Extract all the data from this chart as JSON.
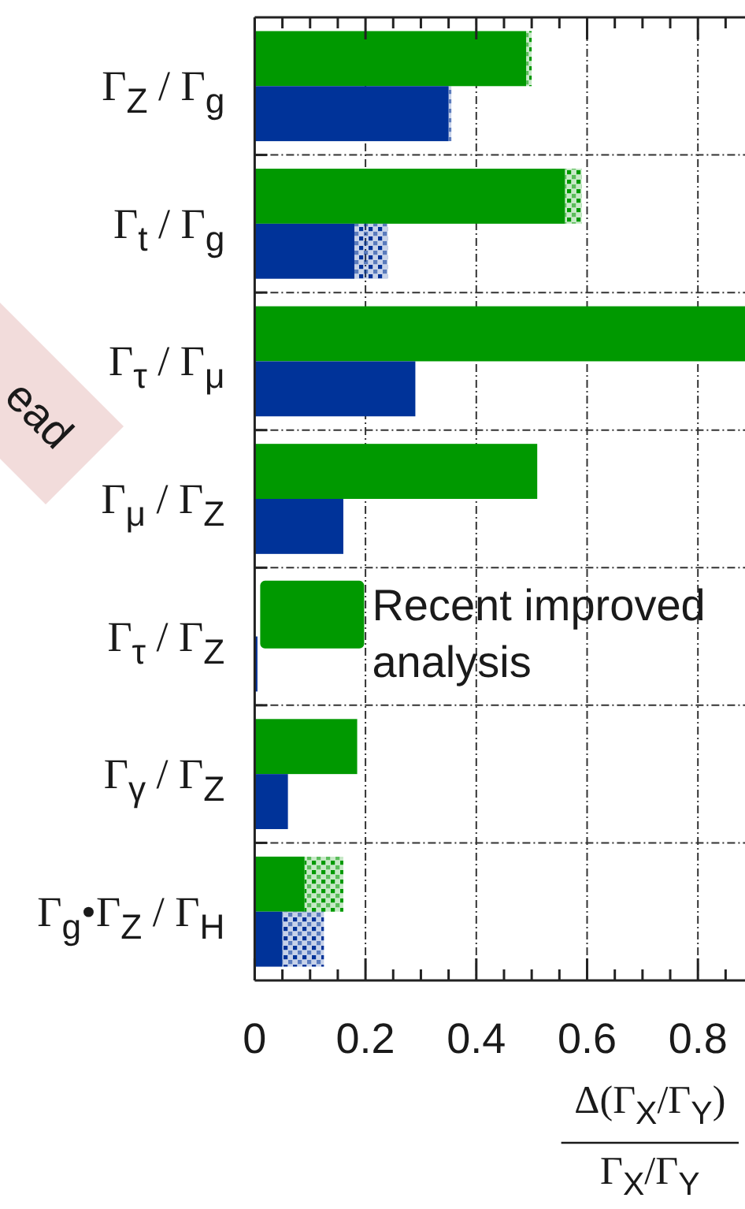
{
  "chart_data": {
    "type": "bar",
    "orientation": "horizontal",
    "categories": [
      "Γ$_{Z}$ / Γ$_{g}$",
      "Γ$_{t}$ / Γ$_{g}$",
      "Γ$_{τ}$ / Γ$_{μ}$",
      "Γ$_{μ}$ / Γ$_{Z}$",
      "Γ$_{τ}$ / Γ$_{Z}$",
      "Γ$_{γ}$ / Γ$_{Z}$",
      "Γ$_{g}$•Γ$_{Z}$ / Γ$_{H}$"
    ],
    "series": [
      {
        "name": "Recent improved analysis",
        "color": "#009900",
        "values": [
          0.49,
          0.56,
          0.885,
          0.51,
          null,
          0.185,
          0.09
        ],
        "errors": [
          [
            0.49,
            0.5
          ],
          [
            0.56,
            0.59
          ],
          null,
          null,
          null,
          null,
          [
            0.09,
            0.16
          ]
        ]
      },
      {
        "color": "#003399",
        "values": [
          0.35,
          0.18,
          0.29,
          0.16,
          0.005,
          0.06,
          0.05
        ],
        "errors": [
          [
            0.35,
            0.355
          ],
          [
            0.18,
            0.24
          ],
          null,
          null,
          null,
          null,
          [
            0.05,
            0.125
          ]
        ]
      }
    ],
    "xlim": [
      0,
      0.885
    ],
    "xticks": [
      0,
      {
        "value": 0.05,
        "label": null
      },
      {
        "value": 0.1,
        "label": null
      },
      {
        "value": 0.15,
        "label": null
      },
      0.2,
      {
        "value": 0.25,
        "label": null
      },
      {
        "value": 0.3,
        "label": null
      },
      {
        "value": 0.35,
        "label": null
      },
      0.4,
      {
        "value": 0.45,
        "label": null
      },
      {
        "value": 0.5,
        "label": null
      },
      {
        "value": 0.55,
        "label": null
      },
      0.6,
      {
        "value": 0.65,
        "label": null
      },
      {
        "value": 0.7,
        "label": null
      },
      {
        "value": 0.75,
        "label": null
      },
      0.8,
      {
        "value": 0.85,
        "label": null
      }
    ],
    "xlabel": "Δ(Γ$_{X}$/Γ$_{Y}$)\nΓ$_{X}$/Γ$_{Y}$",
    "grid": true,
    "legend": "left",
    "annotations": [
      "ead"
    ]
  }
}
